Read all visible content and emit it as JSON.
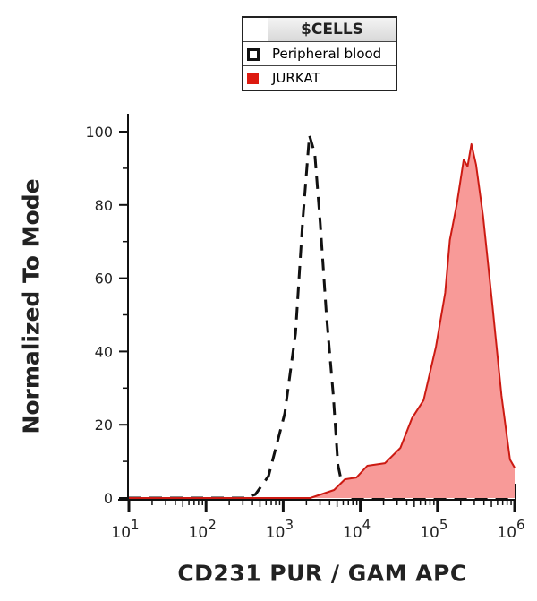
{
  "legend": {
    "title": "$CELLS",
    "items": [
      {
        "label": "Peripheral blood",
        "color": "#111111",
        "style": "dashed-outline"
      },
      {
        "label": "JURKAT",
        "color": "#dd1a10",
        "style": "filled"
      }
    ]
  },
  "chart_data": {
    "type": "area",
    "title": "",
    "xlabel": "CD231 PUR / GAM APC",
    "ylabel": "Normalized To Mode",
    "x_scale": "log",
    "xlim_exponent": [
      1,
      6
    ],
    "ylim": [
      0,
      100
    ],
    "x_ticks": [
      {
        "base": "10",
        "exp": "1"
      },
      {
        "base": "10",
        "exp": "2"
      },
      {
        "base": "10",
        "exp": "3"
      },
      {
        "base": "10",
        "exp": "4"
      },
      {
        "base": "10",
        "exp": "5"
      },
      {
        "base": "10",
        "exp": "6"
      }
    ],
    "y_ticks": [
      "0",
      "20",
      "40",
      "60",
      "80",
      "100"
    ],
    "grid": false,
    "legend_position": "top-center",
    "series": [
      {
        "name": "Peripheral blood",
        "color": "#111111",
        "fill": "none",
        "line": "dashed",
        "x_log10": [
          1.0,
          2.5,
          2.64,
          2.81,
          3.02,
          3.16,
          3.25,
          3.34,
          3.41,
          3.48,
          3.56,
          3.65,
          3.71,
          3.8,
          6.0
        ],
        "y": [
          0,
          0,
          1,
          6,
          23,
          45,
          75,
          99,
          94,
          75,
          50,
          28,
          9,
          0,
          0
        ]
      },
      {
        "name": "JURKAT",
        "color": "#cc1a12",
        "fill": "#f89a98",
        "line": "solid",
        "x_log10": [
          1.0,
          3.35,
          3.66,
          3.8,
          3.95,
          4.09,
          4.32,
          4.52,
          4.67,
          4.82,
          4.98,
          5.1,
          5.16,
          5.25,
          5.34,
          5.39,
          5.44,
          5.5,
          5.59,
          5.71,
          5.83,
          5.94,
          6.0
        ],
        "y": [
          0,
          0,
          2.2,
          5.1,
          5.6,
          8.8,
          9.5,
          13.7,
          21.8,
          26.7,
          41.3,
          56,
          70.4,
          80.2,
          92.4,
          90.5,
          96.6,
          91,
          77,
          53,
          28,
          10.5,
          8.3
        ]
      }
    ]
  }
}
